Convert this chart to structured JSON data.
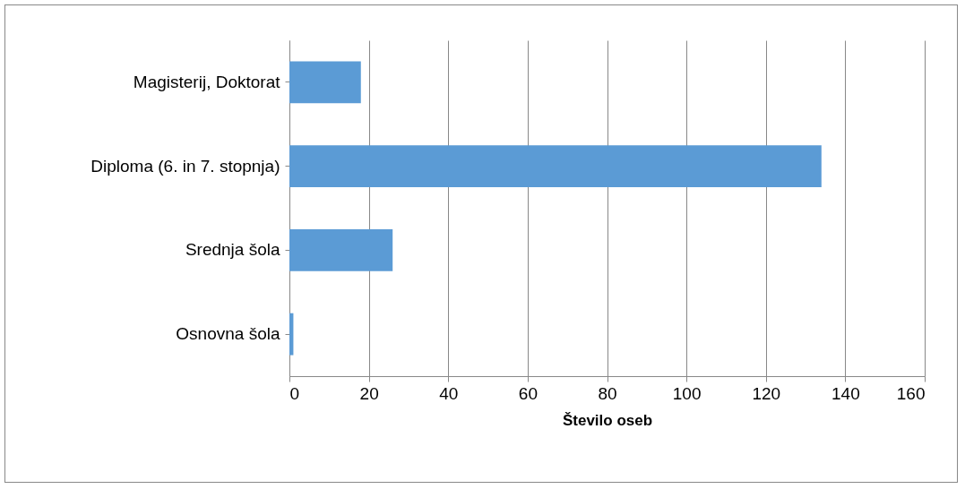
{
  "chart_data": {
    "type": "bar",
    "orientation": "horizontal",
    "xlabel": "Število oseb",
    "categories": [
      "Magisterij, Doktorat",
      "Diploma (6. in 7. stopnja)",
      "Srednja šola",
      "Osnovna šola"
    ],
    "values": [
      18,
      134,
      26,
      1
    ],
    "color": "#5b9bd5",
    "xlim": [
      0,
      160
    ],
    "xticks": [
      0,
      20,
      40,
      60,
      80,
      100,
      120,
      140,
      160
    ],
    "grid": "x"
  }
}
